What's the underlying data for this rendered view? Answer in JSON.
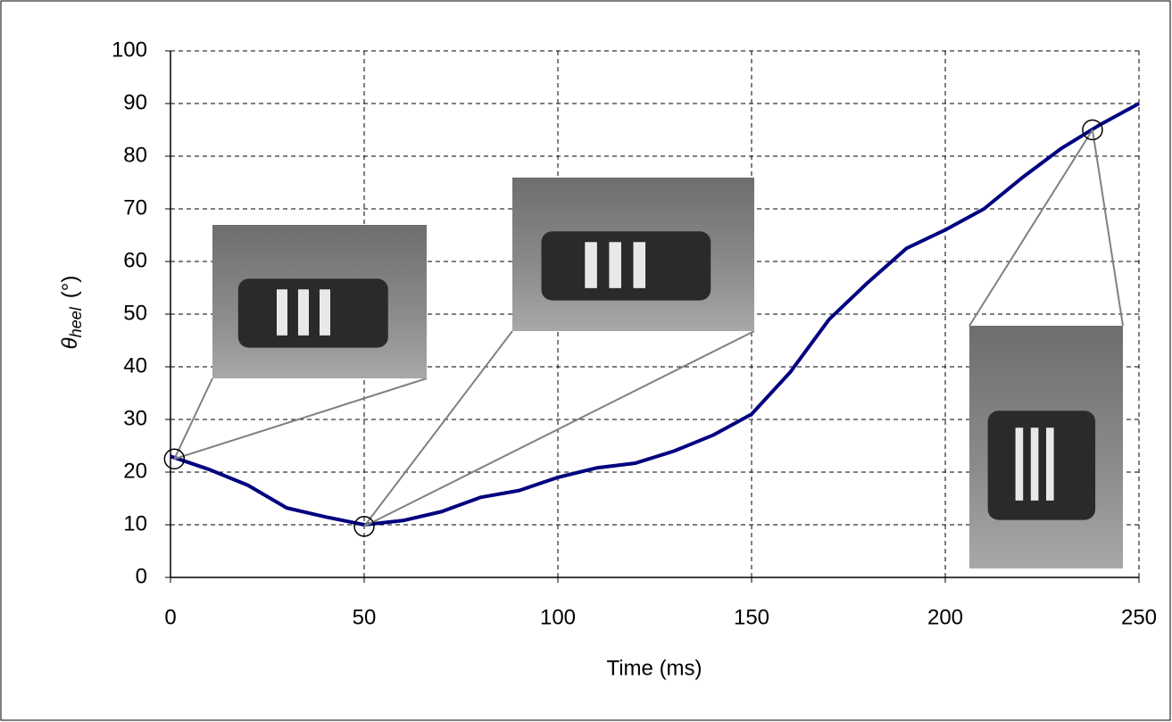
{
  "chart_data": {
    "type": "line",
    "xlabel": "Time (ms)",
    "ylabel": {
      "symbol": "θ",
      "subscript": "heel",
      "unit": "(°)"
    },
    "x": [
      0,
      10,
      20,
      30,
      40,
      50,
      60,
      70,
      80,
      90,
      100,
      110,
      120,
      130,
      140,
      150,
      160,
      170,
      180,
      190,
      200,
      210,
      220,
      230,
      240,
      250
    ],
    "series": [
      {
        "color": "#000080",
        "values": [
          23,
          20.5,
          17.5,
          13.2,
          11.5,
          10,
          10.8,
          12.5,
          15.2,
          16.5,
          19,
          20.8,
          21.7,
          24,
          27,
          31,
          39,
          49,
          56,
          62.5,
          66,
          70,
          76,
          81.5,
          86,
          90
        ]
      }
    ],
    "highlights": [
      {
        "x": 1,
        "y": 22.5
      },
      {
        "x": 50,
        "y": 9.7
      },
      {
        "x": 238,
        "y": 85
      }
    ],
    "xlim": [
      0,
      250
    ],
    "xticks": [
      0,
      50,
      100,
      150,
      200,
      250
    ],
    "ylim": [
      0,
      100
    ],
    "yticks": [
      0,
      10,
      20,
      30,
      40,
      50,
      60,
      70,
      80,
      90,
      100
    ],
    "grid": true
  }
}
